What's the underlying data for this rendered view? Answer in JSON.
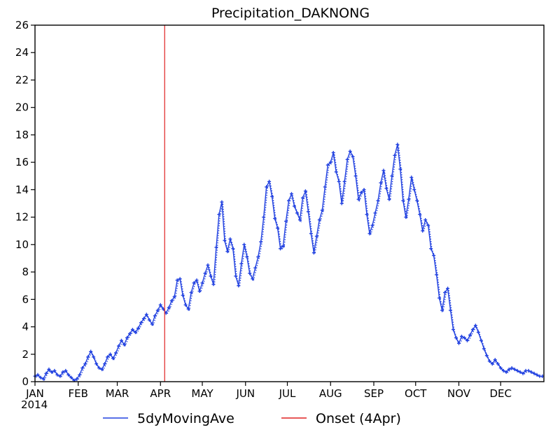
{
  "chart_data": {
    "type": "line",
    "title": "Precipitation_DAKNONG",
    "xlabel": "",
    "ylabel": "",
    "year_label": "2014",
    "month_ticks": [
      {
        "label": "JAN",
        "day": 1
      },
      {
        "label": "FEB",
        "day": 32
      },
      {
        "label": "MAR",
        "day": 60
      },
      {
        "label": "APR",
        "day": 91
      },
      {
        "label": "MAY",
        "day": 121
      },
      {
        "label": "JUN",
        "day": 152
      },
      {
        "label": "JUL",
        "day": 182
      },
      {
        "label": "AUG",
        "day": 213
      },
      {
        "label": "SEP",
        "day": 244
      },
      {
        "label": "OCT",
        "day": 274
      },
      {
        "label": "NOV",
        "day": 305
      },
      {
        "label": "DEC",
        "day": 335
      }
    ],
    "xlim": [
      1,
      366
    ],
    "ylim": [
      0,
      26
    ],
    "y_ticks": [
      0,
      2,
      4,
      6,
      8,
      10,
      12,
      14,
      16,
      18,
      20,
      22,
      24,
      26
    ],
    "y_tick_labels": [
      "0",
      "2",
      "4",
      "6",
      "8",
      "10",
      "12",
      "14",
      "16",
      "18",
      "20",
      "22",
      "24",
      "26"
    ],
    "grid": false,
    "legend_position": "bottom",
    "series": [
      {
        "name": "5dyMovingAve",
        "color": "#2040e0",
        "x": [
          1,
          3,
          5,
          7,
          9,
          11,
          13,
          15,
          17,
          19,
          21,
          23,
          25,
          27,
          29,
          31,
          33,
          35,
          37,
          39,
          41,
          43,
          45,
          47,
          49,
          51,
          53,
          55,
          57,
          59,
          61,
          63,
          65,
          67,
          69,
          71,
          73,
          75,
          77,
          79,
          81,
          83,
          85,
          87,
          89,
          91,
          93,
          95,
          97,
          99,
          101,
          103,
          105,
          107,
          109,
          111,
          113,
          115,
          117,
          119,
          121,
          123,
          125,
          127,
          129,
          131,
          133,
          135,
          137,
          139,
          141,
          143,
          145,
          147,
          149,
          151,
          153,
          155,
          157,
          159,
          161,
          163,
          165,
          167,
          169,
          171,
          173,
          175,
          177,
          179,
          181,
          183,
          185,
          187,
          189,
          191,
          193,
          195,
          197,
          199,
          201,
          203,
          205,
          207,
          209,
          211,
          213,
          215,
          217,
          219,
          221,
          223,
          225,
          227,
          229,
          231,
          233,
          235,
          237,
          239,
          241,
          243,
          245,
          247,
          249,
          251,
          253,
          255,
          257,
          259,
          261,
          263,
          265,
          267,
          269,
          271,
          273,
          275,
          277,
          279,
          281,
          283,
          285,
          287,
          289,
          291,
          293,
          295,
          297,
          299,
          301,
          303,
          305,
          307,
          309,
          311,
          313,
          315,
          317,
          319,
          321,
          323,
          325,
          327,
          329,
          331,
          333,
          335,
          337,
          339,
          341,
          343,
          345,
          347,
          349,
          351,
          353,
          355,
          357,
          359,
          361,
          363,
          365
        ],
        "y": [
          0.4,
          0.5,
          0.3,
          0.2,
          0.6,
          0.9,
          0.7,
          0.8,
          0.5,
          0.4,
          0.7,
          0.8,
          0.5,
          0.3,
          0.1,
          0.2,
          0.5,
          1.0,
          1.3,
          1.8,
          2.2,
          1.8,
          1.3,
          1.0,
          0.9,
          1.3,
          1.8,
          2.0,
          1.7,
          2.1,
          2.6,
          3.0,
          2.7,
          3.2,
          3.5,
          3.8,
          3.6,
          3.9,
          4.3,
          4.6,
          4.9,
          4.5,
          4.2,
          4.8,
          5.2,
          5.6,
          5.3,
          5.0,
          5.4,
          5.9,
          6.2,
          7.4,
          7.5,
          6.3,
          5.6,
          5.3,
          6.5,
          7.2,
          7.4,
          6.6,
          7.2,
          7.9,
          8.5,
          7.7,
          7.1,
          9.8,
          12.2,
          13.1,
          10.3,
          9.5,
          10.4,
          9.7,
          7.7,
          7.0,
          8.6,
          10.0,
          9.1,
          7.9,
          7.5,
          8.3,
          9.1,
          10.2,
          12.0,
          14.2,
          14.6,
          13.5,
          11.9,
          11.2,
          9.7,
          9.9,
          11.7,
          13.2,
          13.7,
          12.8,
          12.3,
          11.8,
          13.4,
          13.9,
          12.4,
          10.8,
          9.4,
          10.6,
          11.8,
          12.5,
          14.2,
          15.8,
          16.0,
          16.7,
          15.3,
          14.6,
          13.0,
          14.6,
          16.2,
          16.8,
          16.4,
          15.0,
          13.3,
          13.8,
          14.0,
          12.2,
          10.8,
          11.4,
          12.3,
          13.2,
          14.5,
          15.4,
          14.1,
          13.3,
          15.0,
          16.5,
          17.3,
          15.5,
          13.2,
          12.0,
          13.3,
          14.9,
          14.0,
          13.2,
          12.2,
          11.0,
          11.8,
          11.4,
          9.7,
          9.2,
          7.8,
          6.1,
          5.2,
          6.5,
          6.8,
          5.2,
          3.8,
          3.2,
          2.8,
          3.3,
          3.2,
          3.0,
          3.4,
          3.8,
          4.1,
          3.6,
          3.0,
          2.4,
          1.9,
          1.5,
          1.3,
          1.6,
          1.3,
          1.0,
          0.8,
          0.7,
          0.9,
          1.0,
          0.9,
          0.8,
          0.7,
          0.6,
          0.8,
          0.8,
          0.7,
          0.6,
          0.5,
          0.4,
          0.4
        ]
      },
      {
        "name": "Onset (4Apr)",
        "color": "#e02020",
        "x": [
          94,
          94
        ],
        "y": [
          0,
          26
        ]
      }
    ]
  }
}
